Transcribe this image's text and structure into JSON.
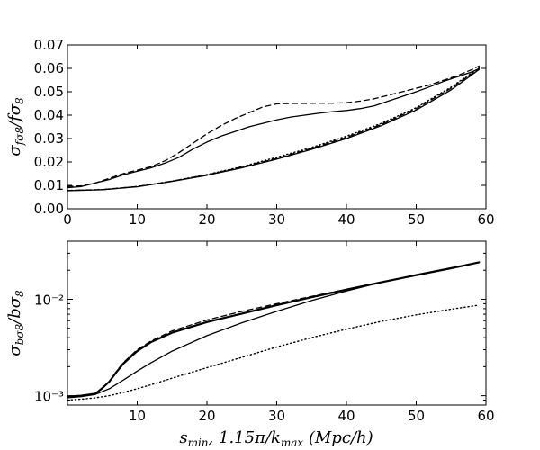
{
  "chart_data": [
    {
      "type": "line",
      "panel": "top",
      "ylabel": "σ_fσ8 / fσ8",
      "xlim": [
        0,
        60
      ],
      "ylim": [
        0,
        0.07
      ],
      "yscale": "linear",
      "xticks": [
        "0",
        "10",
        "20",
        "30",
        "40",
        "50",
        "60"
      ],
      "yticks": [
        "0.00",
        "0.01",
        "0.02",
        "0.03",
        "0.04",
        "0.05",
        "0.06",
        "0.07"
      ],
      "series": [
        {
          "name": "upper-dashed",
          "style": "dashed",
          "x": [
            0,
            2,
            4,
            6,
            8,
            10,
            12,
            14,
            16,
            18,
            20,
            22,
            24,
            26,
            28,
            30,
            32,
            34,
            36,
            38,
            40,
            42,
            44,
            46,
            48,
            50,
            52,
            54,
            56,
            58,
            59
          ],
          "y": [
            0.0095,
            0.0098,
            0.011,
            0.013,
            0.015,
            0.0165,
            0.018,
            0.0205,
            0.024,
            0.028,
            0.032,
            0.0355,
            0.0385,
            0.041,
            0.0435,
            0.0448,
            0.045,
            0.045,
            0.0451,
            0.0451,
            0.0453,
            0.046,
            0.047,
            0.0485,
            0.05,
            0.0515,
            0.053,
            0.055,
            0.057,
            0.0595,
            0.061
          ]
        },
        {
          "name": "upper-solid",
          "style": "solid",
          "x": [
            0,
            2,
            4,
            6,
            8,
            10,
            12,
            14,
            16,
            18,
            20,
            22,
            24,
            26,
            28,
            30,
            32,
            34,
            36,
            38,
            40,
            42,
            44,
            46,
            48,
            50,
            52,
            54,
            56,
            58,
            59
          ],
          "y": [
            0.009,
            0.0095,
            0.011,
            0.0125,
            0.0145,
            0.016,
            0.0175,
            0.0195,
            0.022,
            0.0255,
            0.0285,
            0.031,
            0.033,
            0.035,
            0.0365,
            0.038,
            0.0392,
            0.04,
            0.0408,
            0.0415,
            0.042,
            0.0428,
            0.044,
            0.046,
            0.048,
            0.05,
            0.0522,
            0.0545,
            0.0565,
            0.0585,
            0.0598
          ]
        },
        {
          "name": "lower-dashed",
          "style": "dashed",
          "x": [
            0,
            5,
            10,
            15,
            20,
            25,
            30,
            35,
            40,
            45,
            50,
            55,
            59
          ],
          "y": [
            0.0078,
            0.0082,
            0.0095,
            0.0118,
            0.0145,
            0.0178,
            0.0215,
            0.0258,
            0.0305,
            0.036,
            0.0428,
            0.0515,
            0.06
          ]
        },
        {
          "name": "lower-solid",
          "style": "solid",
          "x": [
            0,
            5,
            10,
            15,
            20,
            25,
            30,
            35,
            40,
            45,
            50,
            55,
            59
          ],
          "y": [
            0.0077,
            0.0081,
            0.0094,
            0.0117,
            0.0143,
            0.0175,
            0.0212,
            0.0254,
            0.03,
            0.0355,
            0.0422,
            0.0508,
            0.0595
          ]
        },
        {
          "name": "dotted",
          "style": "dotted",
          "x": [
            0,
            5,
            10,
            15,
            20,
            25,
            30,
            35,
            40,
            45,
            50,
            55,
            59
          ],
          "y": [
            0.0078,
            0.0082,
            0.0095,
            0.0118,
            0.0146,
            0.018,
            0.022,
            0.0262,
            0.031,
            0.0365,
            0.0432,
            0.052,
            0.0602
          ]
        }
      ]
    },
    {
      "type": "line",
      "panel": "bottom",
      "ylabel": "σ_bσ8 / bσ8",
      "xlabel": "s_min, 1.15π/k_max   (Mpc/h)",
      "xlim": [
        0,
        60
      ],
      "ylim": [
        0.0008,
        0.04
      ],
      "yscale": "log",
      "xticks": [
        "10",
        "20",
        "30",
        "40",
        "50",
        "60"
      ],
      "yticks": [
        "10⁻³",
        "10⁻²"
      ],
      "series": [
        {
          "name": "thick-solid",
          "style": "thick",
          "x": [
            0,
            2,
            4,
            5,
            6,
            7,
            8,
            10,
            12,
            15,
            20,
            25,
            30,
            35,
            40,
            45,
            50,
            55,
            59
          ],
          "y": [
            0.00098,
            0.001,
            0.00105,
            0.0012,
            0.0014,
            0.00175,
            0.00215,
            0.0029,
            0.0036,
            0.0045,
            0.0058,
            0.0071,
            0.0087,
            0.0105,
            0.0126,
            0.015,
            0.0178,
            0.021,
            0.0242
          ]
        },
        {
          "name": "dashed",
          "style": "dashed",
          "x": [
            0,
            2,
            4,
            5,
            6,
            7,
            8,
            10,
            12,
            15,
            20,
            25,
            30,
            35,
            40,
            45,
            50,
            55,
            59
          ],
          "y": [
            0.00098,
            0.001,
            0.00105,
            0.0012,
            0.0014,
            0.00178,
            0.0022,
            0.003,
            0.0037,
            0.0047,
            0.0061,
            0.0075,
            0.009,
            0.0107,
            0.0127,
            0.015,
            0.0178,
            0.021,
            0.0242
          ]
        },
        {
          "name": "thin-solid",
          "style": "solid",
          "x": [
            0,
            2,
            4,
            6,
            8,
            10,
            12,
            15,
            20,
            25,
            30,
            35,
            40,
            45,
            50,
            55,
            59
          ],
          "y": [
            0.00095,
            0.00098,
            0.00103,
            0.00118,
            0.00145,
            0.0018,
            0.0022,
            0.0029,
            0.0042,
            0.0057,
            0.0075,
            0.0097,
            0.0122,
            0.015,
            0.018,
            0.0212,
            0.0242
          ]
        },
        {
          "name": "dotted",
          "style": "dotted",
          "x": [
            0,
            2,
            4,
            6,
            8,
            10,
            12,
            15,
            20,
            25,
            30,
            35,
            40,
            45,
            50,
            55,
            59
          ],
          "y": [
            0.0009,
            0.00092,
            0.00095,
            0.001,
            0.00108,
            0.00118,
            0.0013,
            0.00152,
            0.00195,
            0.0025,
            0.0032,
            0.004,
            0.0049,
            0.0059,
            0.0069,
            0.0079,
            0.0087
          ]
        }
      ]
    }
  ]
}
